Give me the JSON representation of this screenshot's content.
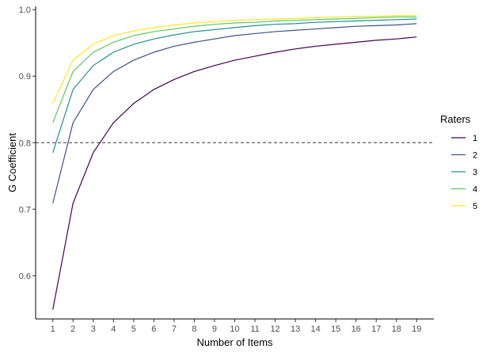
{
  "chart_data": {
    "type": "line",
    "title": "",
    "xlabel": "Number of Items",
    "ylabel": "G Coefficient",
    "x": [
      1,
      2,
      3,
      4,
      5,
      6,
      7,
      8,
      9,
      10,
      11,
      12,
      13,
      14,
      15,
      16,
      17,
      18,
      19
    ],
    "x_ticks": [
      "1",
      "2",
      "3",
      "4",
      "5",
      "6",
      "7",
      "8",
      "9",
      "10",
      "11",
      "12",
      "13",
      "14",
      "15",
      "16",
      "17",
      "18",
      "19"
    ],
    "xlim": [
      0.15,
      19.85
    ],
    "ylim": [
      0.535,
      1.005
    ],
    "y_ticks": [
      0.6,
      0.7,
      0.8,
      0.9,
      1.0
    ],
    "y_tick_labels": [
      "0.6",
      "0.7",
      "0.8",
      "0.9",
      "1.0"
    ],
    "grid": false,
    "reference_line": {
      "y": 0.8,
      "style": "dashed",
      "color": "#333333"
    },
    "legend": {
      "title": "Raters",
      "placement": "right"
    },
    "series": [
      {
        "name": "1",
        "color": "#440154",
        "values": [
          0.549,
          0.709,
          0.785,
          0.83,
          0.859,
          0.88,
          0.895,
          0.907,
          0.916,
          0.924,
          0.93,
          0.936,
          0.941,
          0.945,
          0.948,
          0.951,
          0.954,
          0.956,
          0.959
        ]
      },
      {
        "name": "2",
        "color": "#3b528b",
        "values": [
          0.709,
          0.83,
          0.88,
          0.907,
          0.924,
          0.936,
          0.945,
          0.951,
          0.956,
          0.961,
          0.964,
          0.967,
          0.969,
          0.971,
          0.973,
          0.975,
          0.976,
          0.977,
          0.979
        ]
      },
      {
        "name": "3",
        "color": "#21908c",
        "values": [
          0.785,
          0.88,
          0.916,
          0.936,
          0.948,
          0.956,
          0.962,
          0.967,
          0.97,
          0.973,
          0.976,
          0.978,
          0.979,
          0.981,
          0.982,
          0.983,
          0.984,
          0.985,
          0.986
        ]
      },
      {
        "name": "4",
        "color": "#5dc863",
        "values": [
          0.83,
          0.907,
          0.936,
          0.951,
          0.961,
          0.967,
          0.971,
          0.975,
          0.978,
          0.98,
          0.981,
          0.983,
          0.984,
          0.985,
          0.986,
          0.987,
          0.988,
          0.989,
          0.989
        ]
      },
      {
        "name": "5",
        "color": "#fde725",
        "values": [
          0.859,
          0.924,
          0.948,
          0.961,
          0.968,
          0.973,
          0.977,
          0.98,
          0.982,
          0.984,
          0.985,
          0.986,
          0.987,
          0.988,
          0.989,
          0.99,
          0.99,
          0.991,
          0.991
        ]
      }
    ]
  }
}
